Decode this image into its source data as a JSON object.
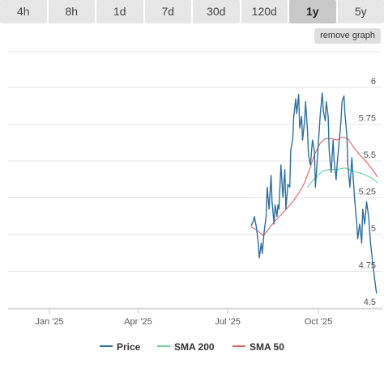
{
  "range_tabs": [
    {
      "label": "4h"
    },
    {
      "label": "8h"
    },
    {
      "label": "1d"
    },
    {
      "label": "7d"
    },
    {
      "label": "30d"
    },
    {
      "label": "120d"
    },
    {
      "label": "1y",
      "active": true
    },
    {
      "label": "5y"
    }
  ],
  "remove_graph_label": "remove graph",
  "colors": {
    "price": "#2f6ea3",
    "sma200": "#66d39a",
    "sma50": "#e06464",
    "grid": "#e6e6e6"
  },
  "chart_data": {
    "type": "line",
    "title": "",
    "xlabel": "",
    "ylabel": "",
    "x_range": [
      "2024-11-20",
      "2025-12-05"
    ],
    "ylim": [
      4.5,
      6.0
    ],
    "y_ticks": [
      {
        "value": 4.5,
        "label": "4.5"
      },
      {
        "value": 4.75,
        "label": "4.75"
      },
      {
        "value": 5.0,
        "label": "5"
      },
      {
        "value": 5.25,
        "label": "5.25"
      },
      {
        "value": 5.5,
        "label": "5.5"
      },
      {
        "value": 5.75,
        "label": "5.75"
      },
      {
        "value": 6.0,
        "label": "6"
      }
    ],
    "x_ticks": [
      {
        "date": "2025-01-01",
        "label": "Jan '25"
      },
      {
        "date": "2025-04-01",
        "label": "Apr '25"
      },
      {
        "date": "2025-07-01",
        "label": "Jul '25"
      },
      {
        "date": "2025-10-01",
        "label": "Oct '25"
      }
    ],
    "grid": true,
    "legend": "bottom-center",
    "series": [
      {
        "name": "Price",
        "color_key": "price",
        "points": [
          [
            "2025-07-25",
            5.04
          ],
          [
            "2025-07-27",
            5.07
          ],
          [
            "2025-07-28",
            5.1
          ],
          [
            "2025-07-30",
            5.03
          ],
          [
            "2025-08-01",
            4.92
          ],
          [
            "2025-08-02",
            4.82
          ],
          [
            "2025-08-04",
            4.92
          ],
          [
            "2025-08-05",
            4.85
          ],
          [
            "2025-08-07",
            5.0
          ],
          [
            "2025-08-09",
            5.1
          ],
          [
            "2025-08-10",
            5.3
          ],
          [
            "2025-08-12",
            5.15
          ],
          [
            "2025-08-14",
            5.38
          ],
          [
            "2025-08-15",
            5.2
          ],
          [
            "2025-08-17",
            5.05
          ],
          [
            "2025-08-18",
            5.18
          ],
          [
            "2025-08-20",
            5.1
          ],
          [
            "2025-08-21",
            5.18
          ],
          [
            "2025-08-22",
            5.15
          ],
          [
            "2025-08-24",
            5.45
          ],
          [
            "2025-08-26",
            5.23
          ],
          [
            "2025-08-28",
            5.42
          ],
          [
            "2025-08-29",
            5.15
          ],
          [
            "2025-08-31",
            5.32
          ],
          [
            "2025-09-02",
            5.3
          ],
          [
            "2025-09-03",
            5.55
          ],
          [
            "2025-09-05",
            5.63
          ],
          [
            "2025-09-06",
            5.78
          ],
          [
            "2025-09-08",
            5.9
          ],
          [
            "2025-09-09",
            5.8
          ],
          [
            "2025-09-11",
            5.93
          ],
          [
            "2025-09-12",
            5.7
          ],
          [
            "2025-09-14",
            5.78
          ],
          [
            "2025-09-15",
            5.62
          ],
          [
            "2025-09-17",
            5.75
          ],
          [
            "2025-09-18",
            5.88
          ],
          [
            "2025-09-20",
            5.68
          ],
          [
            "2025-09-21",
            5.52
          ],
          [
            "2025-09-23",
            5.45
          ],
          [
            "2025-09-25",
            5.62
          ],
          [
            "2025-09-27",
            5.55
          ],
          [
            "2025-09-28",
            5.3
          ],
          [
            "2025-09-30",
            5.5
          ],
          [
            "2025-10-02",
            5.7
          ],
          [
            "2025-10-03",
            5.8
          ],
          [
            "2025-10-05",
            5.94
          ],
          [
            "2025-10-06",
            5.82
          ],
          [
            "2025-10-08",
            5.75
          ],
          [
            "2025-10-09",
            5.88
          ],
          [
            "2025-10-11",
            5.78
          ],
          [
            "2025-10-12",
            5.55
          ],
          [
            "2025-10-14",
            5.4
          ],
          [
            "2025-10-16",
            5.62
          ],
          [
            "2025-10-17",
            5.48
          ],
          [
            "2025-10-19",
            5.35
          ],
          [
            "2025-10-20",
            5.45
          ],
          [
            "2025-10-22",
            5.6
          ],
          [
            "2025-10-24",
            5.75
          ],
          [
            "2025-10-25",
            5.88
          ],
          [
            "2025-10-27",
            5.92
          ],
          [
            "2025-10-28",
            5.8
          ],
          [
            "2025-10-30",
            5.65
          ],
          [
            "2025-10-31",
            5.45
          ],
          [
            "2025-11-02",
            5.3
          ],
          [
            "2025-11-04",
            5.5
          ],
          [
            "2025-11-05",
            5.4
          ],
          [
            "2025-11-07",
            5.2
          ],
          [
            "2025-11-09",
            5.05
          ],
          [
            "2025-11-10",
            4.95
          ],
          [
            "2025-11-12",
            5.05
          ],
          [
            "2025-11-14",
            4.92
          ],
          [
            "2025-11-15",
            5.15
          ],
          [
            "2025-11-17",
            5.05
          ],
          [
            "2025-11-19",
            5.2
          ],
          [
            "2025-11-21",
            5.1
          ],
          [
            "2025-11-23",
            4.92
          ],
          [
            "2025-11-25",
            4.8
          ],
          [
            "2025-11-27",
            4.68
          ],
          [
            "2025-11-29",
            4.58
          ]
        ]
      },
      {
        "name": "SMA 200",
        "color_key": "sma200",
        "points": [
          [
            "2025-09-20",
            5.3
          ],
          [
            "2025-09-26",
            5.35
          ],
          [
            "2025-10-01",
            5.38
          ],
          [
            "2025-10-05",
            5.41
          ],
          [
            "2025-10-12",
            5.42
          ],
          [
            "2025-10-20",
            5.42
          ],
          [
            "2025-10-28",
            5.43
          ],
          [
            "2025-11-05",
            5.41
          ],
          [
            "2025-11-15",
            5.39
          ],
          [
            "2025-11-25",
            5.36
          ],
          [
            "2025-11-30",
            5.33
          ]
        ]
      },
      {
        "name": "SMA 50",
        "color_key": "sma50",
        "points": [
          [
            "2025-07-25",
            5.03
          ],
          [
            "2025-08-01",
            5.0
          ],
          [
            "2025-08-06",
            4.97
          ],
          [
            "2025-08-12",
            5.02
          ],
          [
            "2025-08-18",
            5.07
          ],
          [
            "2025-08-25",
            5.12
          ],
          [
            "2025-09-01",
            5.17
          ],
          [
            "2025-09-06",
            5.21
          ],
          [
            "2025-09-12",
            5.27
          ],
          [
            "2025-09-17",
            5.33
          ],
          [
            "2025-09-22",
            5.42
          ],
          [
            "2025-09-27",
            5.52
          ],
          [
            "2025-10-03",
            5.6
          ],
          [
            "2025-10-08",
            5.63
          ],
          [
            "2025-10-14",
            5.63
          ],
          [
            "2025-10-20",
            5.62
          ],
          [
            "2025-10-25",
            5.64
          ],
          [
            "2025-10-31",
            5.63
          ],
          [
            "2025-11-06",
            5.57
          ],
          [
            "2025-11-12",
            5.52
          ],
          [
            "2025-11-19",
            5.47
          ],
          [
            "2025-11-25",
            5.42
          ],
          [
            "2025-11-30",
            5.37
          ]
        ]
      }
    ]
  }
}
